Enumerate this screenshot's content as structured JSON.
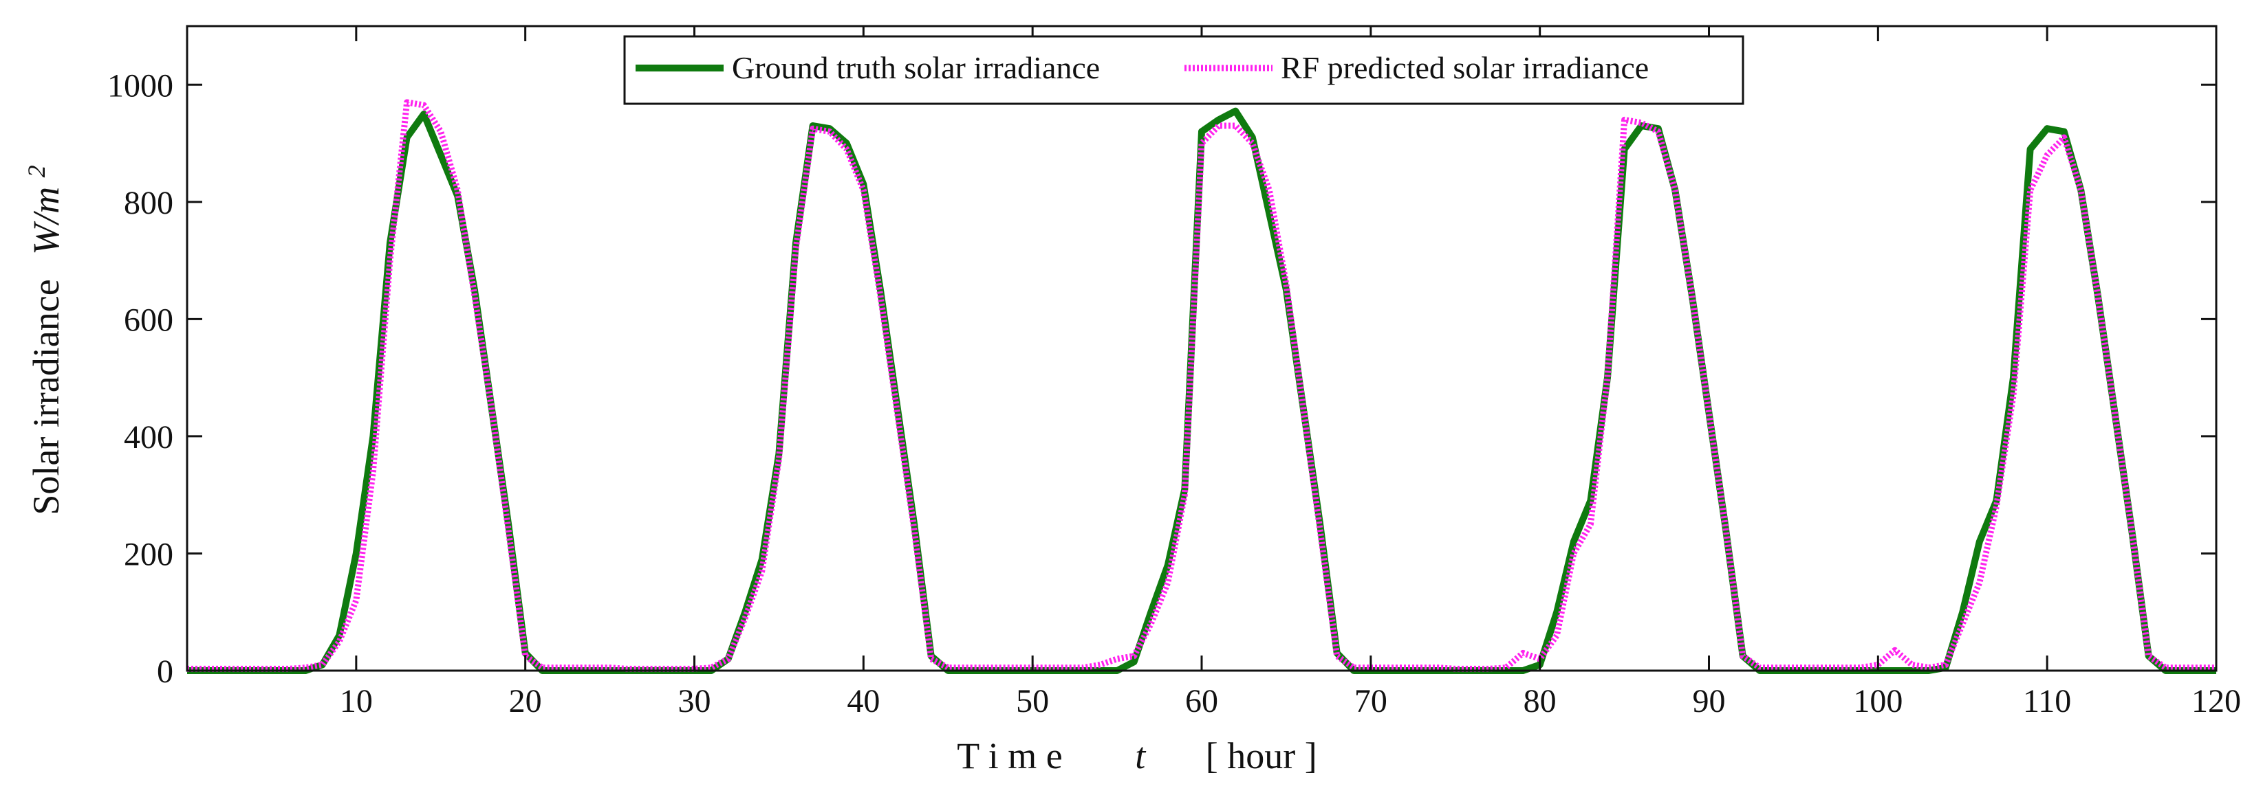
{
  "chart_data": {
    "type": "line",
    "title": "",
    "xlabel": {
      "prefix": "T i m e",
      "var": "t",
      "unit": "[ hour ]"
    },
    "ylabel": {
      "text": "Solar irradiance",
      "unit_base": "W/m",
      "unit_exp": "2"
    },
    "xlim": [
      0,
      120
    ],
    "ylim": [
      0,
      1100
    ],
    "xticks": [
      10,
      20,
      30,
      40,
      50,
      60,
      70,
      80,
      90,
      100,
      110,
      120
    ],
    "yticks": [
      0,
      200,
      400,
      600,
      800,
      1000
    ],
    "grid": false,
    "legend_position": "top-center",
    "series": [
      {
        "name": "Ground truth solar irradiance",
        "color": "#0f7a0f",
        "dash": "solid",
        "x": [
          0,
          1,
          2,
          3,
          4,
          5,
          6,
          7,
          8,
          9,
          10,
          11,
          12,
          13,
          14,
          15,
          16,
          17,
          18,
          19,
          20,
          21,
          22,
          23,
          24,
          25,
          26,
          27,
          28,
          29,
          30,
          31,
          32,
          33,
          34,
          35,
          36,
          37,
          38,
          39,
          40,
          41,
          42,
          43,
          44,
          45,
          46,
          47,
          48,
          49,
          50,
          51,
          52,
          53,
          54,
          55,
          56,
          57,
          58,
          59,
          60,
          61,
          62,
          63,
          64,
          65,
          66,
          67,
          68,
          69,
          70,
          71,
          72,
          73,
          74,
          75,
          76,
          77,
          78,
          79,
          80,
          81,
          82,
          83,
          84,
          85,
          86,
          87,
          88,
          89,
          90,
          91,
          92,
          93,
          94,
          95,
          96,
          97,
          98,
          99,
          100,
          101,
          102,
          103,
          104,
          105,
          106,
          107,
          108,
          109,
          110,
          111,
          112,
          113,
          114,
          115,
          116,
          117,
          118,
          119,
          120
        ],
        "values": [
          0,
          0,
          0,
          0,
          0,
          0,
          0,
          0,
          10,
          60,
          200,
          400,
          730,
          910,
          950,
          880,
          810,
          650,
          450,
          250,
          30,
          0,
          0,
          0,
          0,
          0,
          0,
          0,
          0,
          0,
          0,
          0,
          20,
          100,
          190,
          370,
          730,
          930,
          925,
          900,
          830,
          650,
          450,
          250,
          25,
          0,
          0,
          0,
          0,
          0,
          0,
          0,
          0,
          0,
          0,
          0,
          15,
          100,
          180,
          310,
          920,
          940,
          955,
          910,
          780,
          650,
          450,
          250,
          30,
          0,
          0,
          0,
          0,
          0,
          0,
          0,
          0,
          0,
          0,
          0,
          10,
          100,
          220,
          290,
          500,
          890,
          930,
          925,
          820,
          640,
          440,
          240,
          25,
          0,
          0,
          0,
          0,
          0,
          0,
          0,
          0,
          0,
          0,
          0,
          5,
          100,
          220,
          290,
          500,
          890,
          925,
          920,
          820,
          640,
          440,
          240,
          25,
          0,
          0,
          0,
          0
        ]
      },
      {
        "name": "RF predicted solar irradiance",
        "color": "#ff22ee",
        "dash": "dotted",
        "x": [
          0,
          1,
          2,
          3,
          4,
          5,
          6,
          7,
          8,
          9,
          10,
          11,
          12,
          13,
          14,
          15,
          16,
          17,
          18,
          19,
          20,
          21,
          22,
          23,
          24,
          25,
          26,
          27,
          28,
          29,
          30,
          31,
          32,
          33,
          34,
          35,
          36,
          37,
          38,
          39,
          40,
          41,
          42,
          43,
          44,
          45,
          46,
          47,
          48,
          49,
          50,
          51,
          52,
          53,
          54,
          55,
          56,
          57,
          58,
          59,
          60,
          61,
          62,
          63,
          64,
          65,
          66,
          67,
          68,
          69,
          70,
          71,
          72,
          73,
          74,
          75,
          76,
          77,
          78,
          79,
          80,
          81,
          82,
          83,
          84,
          85,
          86,
          87,
          88,
          89,
          90,
          91,
          92,
          93,
          94,
          95,
          96,
          97,
          98,
          99,
          100,
          101,
          102,
          103,
          104,
          105,
          106,
          107,
          108,
          109,
          110,
          111,
          112,
          113,
          114,
          115,
          116,
          117,
          118,
          119,
          120
        ],
        "values": [
          3,
          3,
          3,
          3,
          3,
          3,
          3,
          5,
          10,
          50,
          120,
          340,
          700,
          970,
          965,
          920,
          820,
          640,
          450,
          240,
          25,
          5,
          5,
          5,
          5,
          5,
          3,
          3,
          3,
          3,
          3,
          5,
          20,
          90,
          170,
          360,
          720,
          925,
          920,
          890,
          820,
          640,
          440,
          240,
          20,
          5,
          5,
          5,
          5,
          5,
          5,
          5,
          5,
          5,
          10,
          20,
          25,
          80,
          150,
          300,
          900,
          930,
          930,
          900,
          820,
          660,
          450,
          240,
          25,
          5,
          5,
          5,
          5,
          5,
          5,
          3,
          3,
          3,
          5,
          30,
          20,
          60,
          200,
          250,
          500,
          940,
          935,
          920,
          820,
          640,
          440,
          240,
          25,
          5,
          5,
          5,
          5,
          5,
          5,
          5,
          10,
          35,
          10,
          5,
          10,
          80,
          150,
          280,
          470,
          820,
          880,
          910,
          820,
          640,
          440,
          240,
          25,
          5,
          5,
          5,
          5
        ]
      }
    ]
  }
}
